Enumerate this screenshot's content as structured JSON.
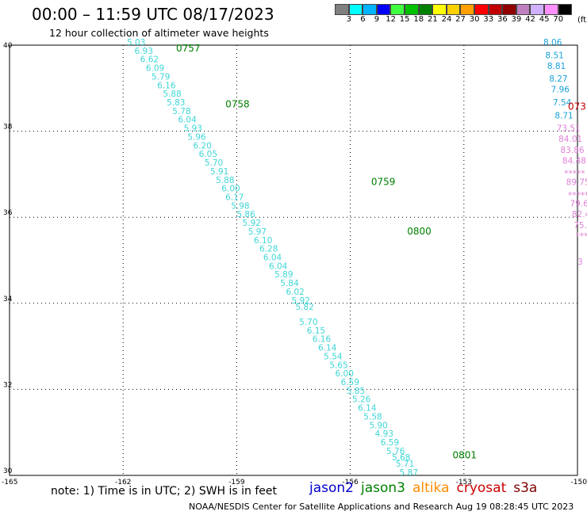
{
  "title": "00:00 – 11:59 UTC 08/17/2023",
  "subtitle": "12 hour collection of altimeter wave heights",
  "colorbar": {
    "colors": [
      "#808080",
      "#00ffff",
      "#00b4ff",
      "#0000ff",
      "#40ff40",
      "#00c000",
      "#008000",
      "#ffff00",
      "#ffd000",
      "#ffa000",
      "#ff0000",
      "#c00000",
      "#900000",
      "#c080c0",
      "#d0b0ff",
      "#ff90ff",
      "#000000"
    ],
    "labels": [
      "3",
      "6",
      "9",
      "12",
      "15",
      "18",
      "21",
      "24",
      "27",
      "30",
      "33",
      "36",
      "39",
      "42",
      "45",
      "70"
    ],
    "unit": "(ft)"
  },
  "note": "note: 1) Time is in UTC; 2) SWH is in feet",
  "satellites": [
    {
      "name": "jason2",
      "color": "#0000cc"
    },
    {
      "name": "jason3",
      "color": "#008000"
    },
    {
      "name": "altika",
      "color": "#ff8c00"
    },
    {
      "name": "cryosat",
      "color": "#cc0000"
    },
    {
      "name": "s3a",
      "color": "#800000"
    }
  ],
  "credit": "NOAA/NESDIS Center for Satellite Applications and Research   Aug 19 08:28:45 UTC 2023",
  "chart_data": {
    "type": "scatter",
    "xlim": [
      -165,
      -150
    ],
    "ylim": [
      30,
      40
    ],
    "x_ticks": [
      "-165",
      "-162",
      "-159",
      "-156",
      "-153",
      "-150"
    ],
    "y_ticks": [
      "30",
      "32",
      "34",
      "36",
      "38",
      "40"
    ],
    "grid": true,
    "tracks": [
      {
        "satellite": "jason3",
        "color": "#3fd6d6",
        "points": [
          {
            "lon": -161.9,
            "lat": 40.0,
            "v": "5.03"
          },
          {
            "lon": -161.7,
            "lat": 39.8,
            "v": "6.93"
          },
          {
            "lon": -161.55,
            "lat": 39.6,
            "v": "6.62"
          },
          {
            "lon": -161.4,
            "lat": 39.4,
            "v": "6.09"
          },
          {
            "lon": -161.25,
            "lat": 39.2,
            "v": "5.79"
          },
          {
            "lon": -161.1,
            "lat": 39.0,
            "v": "6.16"
          },
          {
            "lon": -160.95,
            "lat": 38.8,
            "v": "5.88"
          },
          {
            "lon": -160.85,
            "lat": 38.6,
            "v": "5.83"
          },
          {
            "lon": -160.7,
            "lat": 38.4,
            "v": "5.78"
          },
          {
            "lon": -160.55,
            "lat": 38.2,
            "v": "6.04"
          },
          {
            "lon": -160.4,
            "lat": 38.0,
            "v": "5.93"
          },
          {
            "lon": -160.3,
            "lat": 37.8,
            "v": "5.96"
          },
          {
            "lon": -160.15,
            "lat": 37.6,
            "v": "6.20"
          },
          {
            "lon": -160.0,
            "lat": 37.4,
            "v": "6.05"
          },
          {
            "lon": -159.85,
            "lat": 37.2,
            "v": "5.70"
          },
          {
            "lon": -159.7,
            "lat": 37.0,
            "v": "5.91"
          },
          {
            "lon": -159.55,
            "lat": 36.8,
            "v": "5.88"
          },
          {
            "lon": -159.4,
            "lat": 36.6,
            "v": "6.00"
          },
          {
            "lon": -159.3,
            "lat": 36.4,
            "v": "6.17"
          },
          {
            "lon": -159.15,
            "lat": 36.2,
            "v": "5.98"
          },
          {
            "lon": -159.0,
            "lat": 36.0,
            "v": "5.86"
          },
          {
            "lon": -158.85,
            "lat": 35.8,
            "v": "5.92"
          },
          {
            "lon": -158.7,
            "lat": 35.6,
            "v": "5.97"
          },
          {
            "lon": -158.55,
            "lat": 35.4,
            "v": "6.10"
          },
          {
            "lon": -158.4,
            "lat": 35.2,
            "v": "6.28"
          },
          {
            "lon": -158.3,
            "lat": 35.0,
            "v": "6.04"
          },
          {
            "lon": -158.15,
            "lat": 34.8,
            "v": "6.04"
          },
          {
            "lon": -158.0,
            "lat": 34.6,
            "v": "5.89"
          },
          {
            "lon": -157.85,
            "lat": 34.4,
            "v": "5.84"
          },
          {
            "lon": -157.7,
            "lat": 34.2,
            "v": "6.02"
          },
          {
            "lon": -157.55,
            "lat": 34.0,
            "v": "5.92"
          },
          {
            "lon": -157.45,
            "lat": 33.85,
            "v": "5.82"
          },
          {
            "lon": -157.35,
            "lat": 33.5,
            "v": "5.70"
          },
          {
            "lon": -157.15,
            "lat": 33.3,
            "v": "6.15"
          },
          {
            "lon": -157.0,
            "lat": 33.1,
            "v": "6.16"
          },
          {
            "lon": -156.85,
            "lat": 32.9,
            "v": "6.14"
          },
          {
            "lon": -156.7,
            "lat": 32.7,
            "v": "5.54"
          },
          {
            "lon": -156.55,
            "lat": 32.5,
            "v": "5.65"
          },
          {
            "lon": -156.4,
            "lat": 32.3,
            "v": "6.00"
          },
          {
            "lon": -156.25,
            "lat": 32.1,
            "v": "6.59"
          },
          {
            "lon": -156.1,
            "lat": 31.9,
            "v": "5.85"
          },
          {
            "lon": -155.95,
            "lat": 31.7,
            "v": "5.26"
          },
          {
            "lon": -155.8,
            "lat": 31.5,
            "v": "6.14"
          },
          {
            "lon": -155.65,
            "lat": 31.3,
            "v": "5.58"
          },
          {
            "lon": -155.5,
            "lat": 31.1,
            "v": "5.90"
          },
          {
            "lon": -155.35,
            "lat": 30.9,
            "v": "4.93"
          },
          {
            "lon": -155.2,
            "lat": 30.7,
            "v": "6.59"
          },
          {
            "lon": -155.05,
            "lat": 30.5,
            "v": "5.76"
          },
          {
            "lon": -154.9,
            "lat": 30.35,
            "v": "5.68"
          },
          {
            "lon": -154.8,
            "lat": 30.2,
            "v": "5.71"
          },
          {
            "lon": -154.7,
            "lat": 30.0,
            "v": "5.87"
          }
        ],
        "times": [
          {
            "lon": -160.6,
            "lat": 39.85,
            "v": "0757"
          },
          {
            "lon": -159.3,
            "lat": 38.55,
            "v": "0758"
          },
          {
            "lon": -155.45,
            "lat": 36.75,
            "v": "0759"
          },
          {
            "lon": -154.5,
            "lat": 35.6,
            "v": "0800"
          },
          {
            "lon": -153.3,
            "lat": 30.4,
            "v": "0801"
          }
        ]
      },
      {
        "satellite": "jason2",
        "color": "#1aa0d8",
        "points": [
          {
            "lon": -150.9,
            "lat": 40.0,
            "v": "8.06"
          },
          {
            "lon": -150.85,
            "lat": 39.7,
            "v": "8.51"
          },
          {
            "lon": -150.8,
            "lat": 39.45,
            "v": "8.81"
          },
          {
            "lon": -150.75,
            "lat": 39.15,
            "v": "8.27"
          },
          {
            "lon": -150.7,
            "lat": 38.9,
            "v": "7.96"
          },
          {
            "lon": -150.65,
            "lat": 38.6,
            "v": "7.54"
          },
          {
            "lon": -150.6,
            "lat": 38.3,
            "v": "8.71"
          }
        ]
      },
      {
        "satellite": "altika-high",
        "color": "#e080d8",
        "points": [
          {
            "lon": -150.55,
            "lat": 38.0,
            "v": "73.51"
          },
          {
            "lon": -150.5,
            "lat": 37.75,
            "v": "84.01"
          },
          {
            "lon": -150.45,
            "lat": 37.5,
            "v": "83.86"
          },
          {
            "lon": -150.4,
            "lat": 37.25,
            "v": "84.48"
          },
          {
            "lon": -150.35,
            "lat": 36.95,
            "v": "*****"
          },
          {
            "lon": -150.3,
            "lat": 36.75,
            "v": "89.75"
          },
          {
            "lon": -150.25,
            "lat": 36.45,
            "v": "*****"
          },
          {
            "lon": -150.2,
            "lat": 36.25,
            "v": "79.65"
          },
          {
            "lon": -150.15,
            "lat": 36.0,
            "v": "82.48"
          },
          {
            "lon": -150.1,
            "lat": 35.75,
            "v": "75.30"
          },
          {
            "lon": -150.05,
            "lat": 35.5,
            "v": "*****"
          },
          {
            "lon": -150.0,
            "lat": 34.9,
            "v": "3"
          }
        ]
      }
    ],
    "edge_time": {
      "lon": -150.0,
      "lat": 38.5,
      "v": "073",
      "color": "#c00000"
    }
  }
}
